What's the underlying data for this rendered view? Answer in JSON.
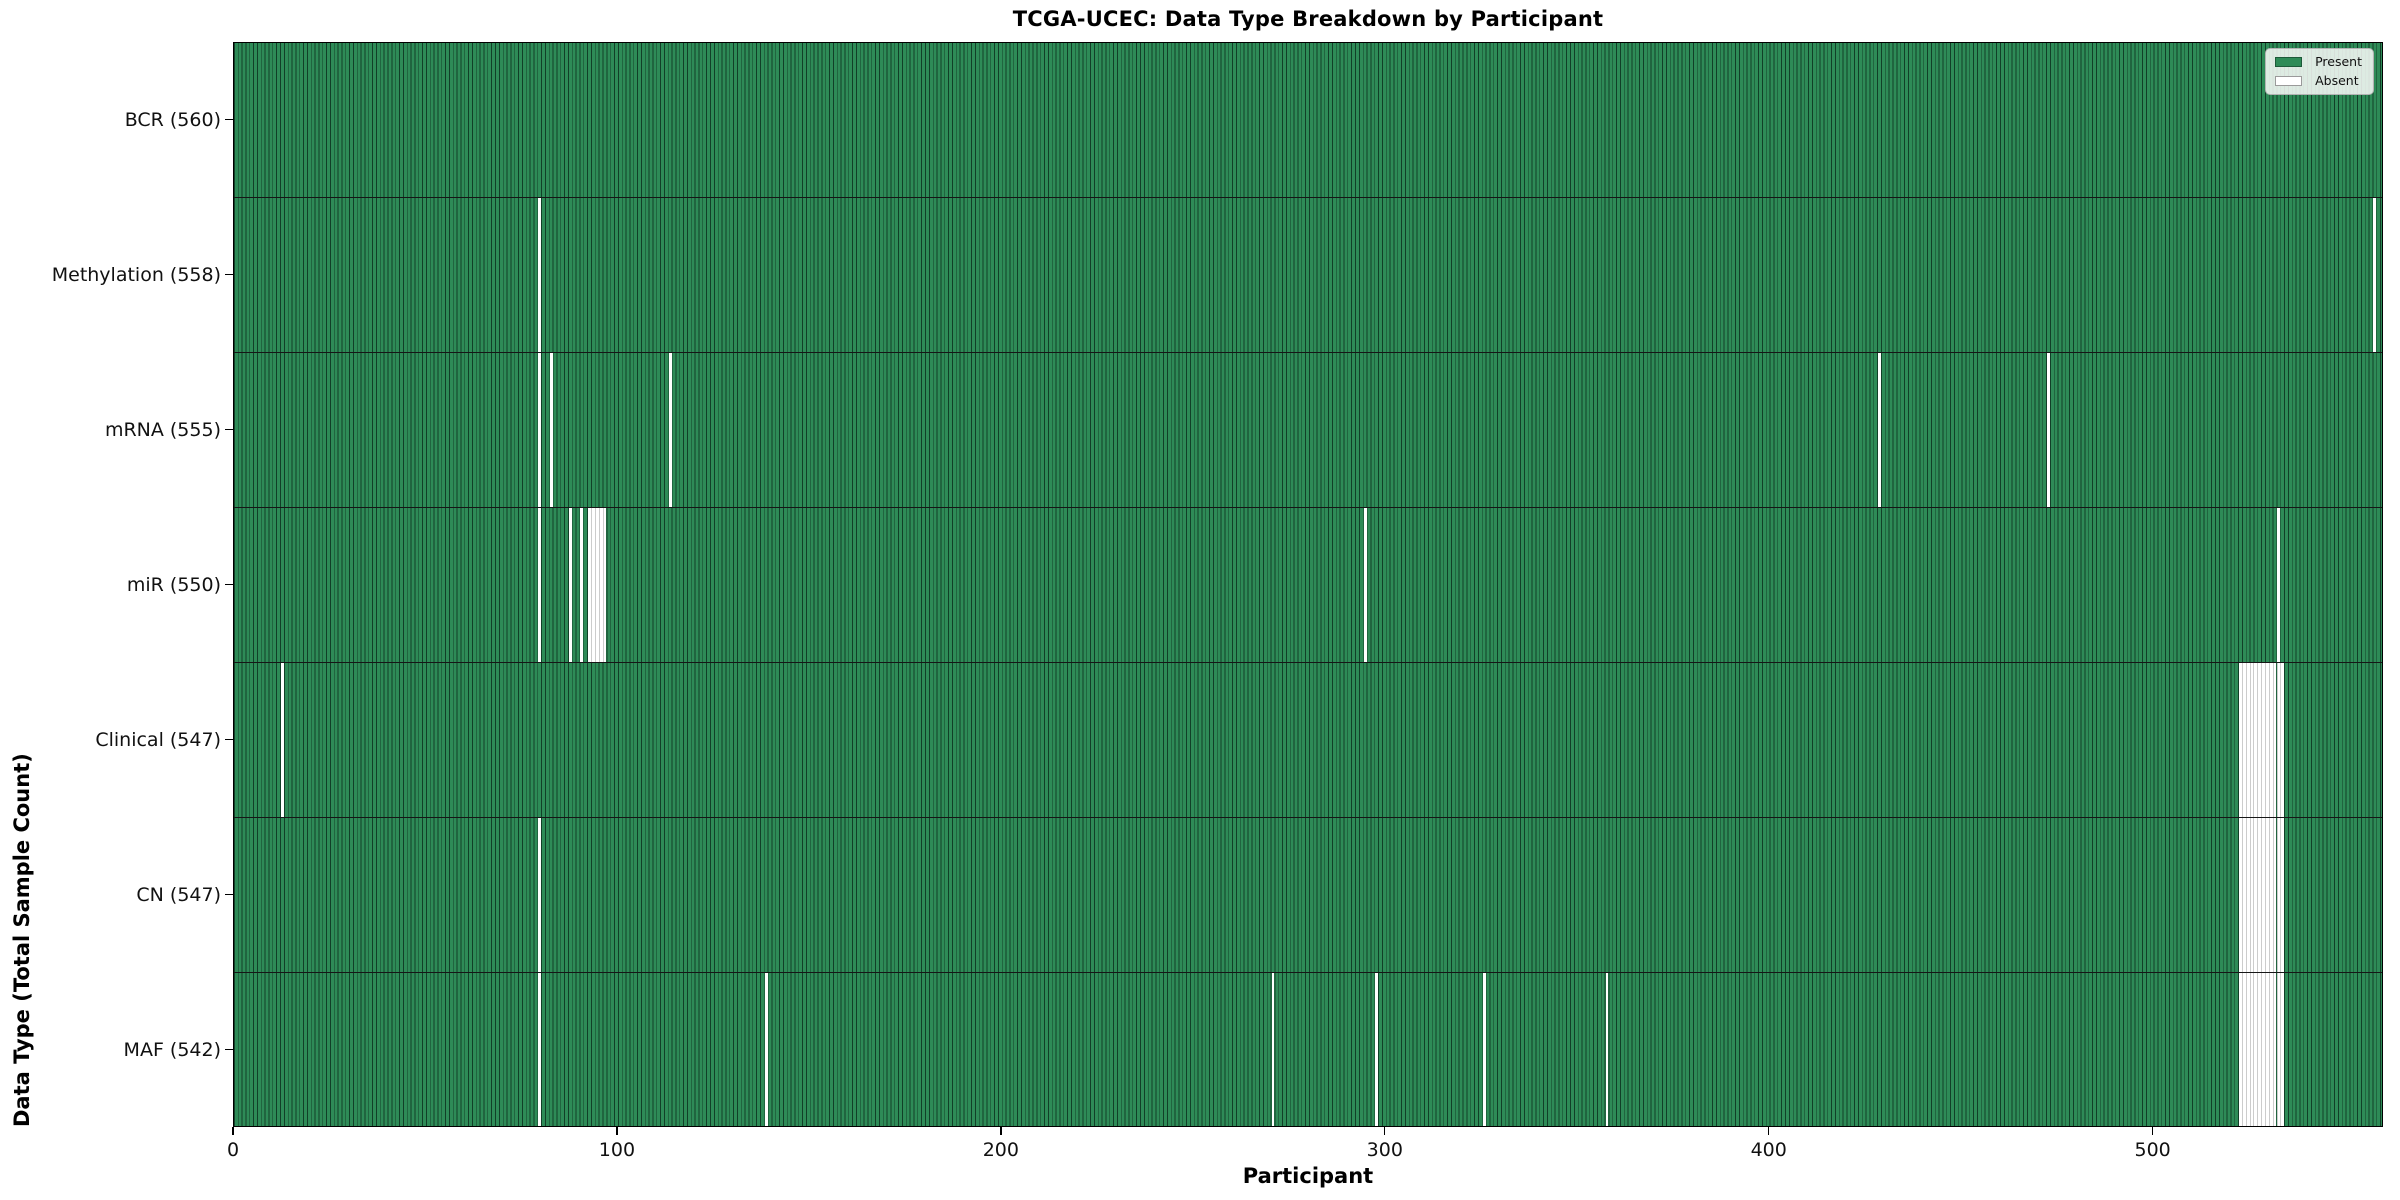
{
  "figure": {
    "title": "TCGA-UCEC: Data Type Breakdown by Participant",
    "xlabel": "Participant",
    "ylabel": "Data Type (Total Sample Count)"
  },
  "legend": {
    "present": "Present",
    "absent": "Absent",
    "position": "upper right"
  },
  "colors": {
    "present": "#2e8b57",
    "absent": "#ffffff",
    "bar_edge": "#143522",
    "row_separator": "#161616",
    "spine": "#000000",
    "legend_border": "#b3b3b3"
  },
  "chart_data": {
    "type": "heatmap",
    "title": "TCGA-UCEC: Data Type Breakdown by Participant",
    "xlabel": "Participant",
    "ylabel": "Data Type (Total Sample Count)",
    "x_range": [
      0,
      560
    ],
    "x_ticks": [
      0,
      100,
      200,
      300,
      400,
      500
    ],
    "total_participants": 560,
    "legend": [
      "Present",
      "Absent"
    ],
    "legend_position": "upper right",
    "grid": false,
    "rows": [
      {
        "data_type": "BCR",
        "label": "BCR (560)",
        "present_count": 560,
        "absent_participants": []
      },
      {
        "data_type": "Methylation",
        "label": "Methylation (558)",
        "present_count": 558,
        "absent_participants": [
          79,
          557
        ]
      },
      {
        "data_type": "mRNA",
        "label": "mRNA (555)",
        "present_count": 555,
        "absent_participants": [
          79,
          82,
          113,
          428,
          472
        ]
      },
      {
        "data_type": "miR",
        "label": "miR (550)",
        "present_count": 550,
        "absent_participants": [
          79,
          87,
          90,
          92,
          93,
          94,
          95,
          96,
          294,
          532
        ]
      },
      {
        "data_type": "Clinical",
        "label": "Clinical (547)",
        "present_count": 547,
        "absent_participants": [
          12,
          522,
          523,
          524,
          525,
          526,
          527,
          528,
          529,
          530,
          531,
          532,
          533
        ]
      },
      {
        "data_type": "CN",
        "label": "CN (547)",
        "present_count": 547,
        "absent_participants": [
          79,
          522,
          523,
          524,
          525,
          526,
          527,
          528,
          529,
          530,
          531,
          532,
          533
        ]
      },
      {
        "data_type": "MAF",
        "label": "MAF (542)",
        "present_count": 542,
        "absent_participants": [
          79,
          138,
          270,
          297,
          325,
          357,
          522,
          523,
          524,
          525,
          526,
          527,
          528,
          529,
          530,
          531,
          532,
          533
        ]
      }
    ]
  }
}
